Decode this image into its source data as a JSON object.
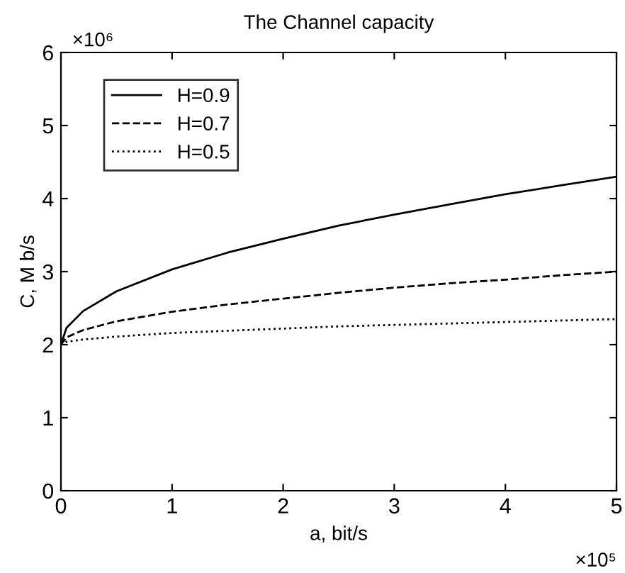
{
  "chart_data": {
    "type": "line",
    "title": "The Channel capacity",
    "xlabel": "a, bit/s",
    "ylabel": "C, M b/s",
    "x": [
      0,
      0.05,
      0.2,
      0.5,
      1,
      1.5,
      2,
      2.5,
      3,
      3.5,
      4,
      4.5,
      5
    ],
    "series": [
      {
        "name": "H=0.9",
        "color": "#000000",
        "line_style": "solid",
        "values": [
          2.0,
          2.23,
          2.46,
          2.73,
          3.03,
          3.26,
          3.45,
          3.63,
          3.78,
          3.92,
          4.06,
          4.18,
          4.3
        ]
      },
      {
        "name": "H=0.7",
        "color": "#000000",
        "line_style": "dashed",
        "values": [
          2.0,
          2.1,
          2.2,
          2.32,
          2.45,
          2.55,
          2.63,
          2.71,
          2.78,
          2.84,
          2.89,
          2.95,
          3.0
        ]
      },
      {
        "name": "H=0.5",
        "color": "#000000",
        "line_style": "dotted",
        "values": [
          2.0,
          2.04,
          2.07,
          2.11,
          2.16,
          2.19,
          2.22,
          2.25,
          2.27,
          2.29,
          2.31,
          2.33,
          2.35
        ]
      }
    ],
    "xlim": [
      0,
      5
    ],
    "ylim": [
      0,
      6
    ],
    "xticks": [
      0,
      1,
      2,
      3,
      4,
      5
    ],
    "yticks": [
      0,
      1,
      2,
      3,
      4,
      5,
      6
    ],
    "annotations": [
      "×10⁶",
      "×10⁵"
    ],
    "legend": "top left",
    "grid": false
  }
}
